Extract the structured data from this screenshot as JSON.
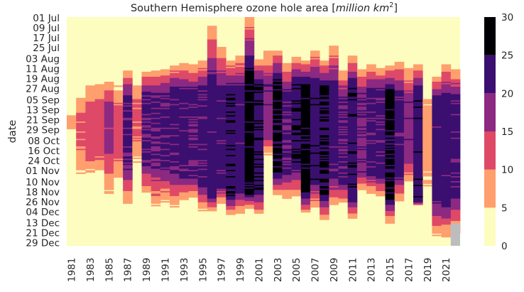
{
  "chart_data": {
    "type": "heatmap",
    "title": "Southern Hemisphere ozone hole area [million km²]",
    "title_parts": {
      "prefix": "Southern Hemisphere ozone hole area [",
      "italic": "million km",
      "superscript": "2",
      "suffix": "]"
    },
    "ylabel": "date",
    "xlabel": "",
    "x_tick_labels": [
      "1981",
      "1983",
      "1985",
      "1987",
      "1989",
      "1991",
      "1993",
      "1995",
      "1997",
      "1999",
      "2001",
      "2003",
      "2005",
      "2007",
      "2009",
      "2011",
      "2013",
      "2015",
      "2017",
      "2019",
      "2021"
    ],
    "y_tick_labels": [
      "01 Jul",
      "09 Jul",
      "17 Jul",
      "25 Jul",
      "03 Aug",
      "11 Aug",
      "19 Aug",
      "27 Aug",
      "05 Sep",
      "13 Sep",
      "21 Sep",
      "29 Sep",
      "08 Oct",
      "16 Oct",
      "24 Oct",
      "01 Nov",
      "10 Nov",
      "18 Nov",
      "26 Nov",
      "04 Dec",
      "13 Dec",
      "21 Dec",
      "29 Dec"
    ],
    "colorbar": {
      "ticks": [
        0,
        5,
        10,
        15,
        20,
        25,
        30
      ],
      "range": [
        0,
        30
      ],
      "bins": [
        {
          "from": 0,
          "to": 5,
          "color": "#fcfdbf"
        },
        {
          "from": 5,
          "to": 10,
          "color": "#fe9f6d"
        },
        {
          "from": 10,
          "to": 15,
          "color": "#de4968"
        },
        {
          "from": 15,
          "to": 20,
          "color": "#8c2981"
        },
        {
          "from": 20,
          "to": 25,
          "color": "#3b0f70"
        },
        {
          "from": 25,
          "to": 30,
          "color": "#000004"
        }
      ],
      "missing_color": "#bdbdbd"
    },
    "years": [
      1981,
      1982,
      1983,
      1984,
      1985,
      1986,
      1987,
      1988,
      1989,
      1990,
      1991,
      1992,
      1993,
      1994,
      1995,
      1996,
      1997,
      1998,
      1999,
      2000,
      2001,
      2002,
      2003,
      2004,
      2005,
      2006,
      2007,
      2008,
      2009,
      2010,
      2011,
      2012,
      2013,
      2014,
      2015,
      2016,
      2017,
      2018,
      2019,
      2020,
      2021,
      2022
    ],
    "season_start_date": "01 Jul",
    "season_end_date": "31 Dec",
    "yearly_profiles": [
      {
        "year": 1981,
        "start": "08 Sep",
        "peak_start": "22 Sep",
        "peak_end": "25 Sep",
        "end": "04 Oct",
        "peak": 7
      },
      {
        "year": 1982,
        "start": "29 Aug",
        "peak_start": "22 Sep",
        "peak_end": "07 Oct",
        "end": "08 Nov",
        "peak": 12
      },
      {
        "year": 1983,
        "start": "23 Aug",
        "peak_start": "16 Sep",
        "peak_end": "14 Oct",
        "end": "05 Nov",
        "peak": 14
      },
      {
        "year": 1984,
        "start": "22 Aug",
        "peak_start": "13 Sep",
        "peak_end": "13 Oct",
        "end": "06 Nov",
        "peak": 14
      },
      {
        "year": 1985,
        "start": "20 Aug",
        "peak_start": "11 Sep",
        "peak_end": "11 Oct",
        "end": "22 Nov",
        "peak": 18
      },
      {
        "year": 1986,
        "start": "24 Aug",
        "peak_start": "17 Sep",
        "peak_end": "10 Oct",
        "end": "13 Nov",
        "peak": 14
      },
      {
        "year": 1987,
        "start": "13 Aug",
        "peak_start": "02 Sep",
        "peak_end": "26 Oct",
        "end": "29 Nov",
        "peak": 22
      },
      {
        "year": 1988,
        "start": "18 Aug",
        "peak_start": "12 Sep",
        "peak_end": "30 Sep",
        "end": "30 Oct",
        "peak": 12
      },
      {
        "year": 1989,
        "start": "14 Aug",
        "peak_start": "01 Sep",
        "peak_end": "25 Oct",
        "end": "21 Nov",
        "peak": 22
      },
      {
        "year": 1990,
        "start": "13 Aug",
        "peak_start": "01 Sep",
        "peak_end": "24 Oct",
        "end": "01 Dec",
        "peak": 22
      },
      {
        "year": 1991,
        "start": "12 Aug",
        "peak_start": "01 Sep",
        "peak_end": "26 Oct",
        "end": "27 Nov",
        "peak": 22
      },
      {
        "year": 1992,
        "start": "09 Aug",
        "peak_start": "28 Aug",
        "peak_end": "31 Oct",
        "end": "01 Dec",
        "peak": 23
      },
      {
        "year": 1993,
        "start": "07 Aug",
        "peak_start": "30 Aug",
        "peak_end": "04 Nov",
        "end": "25 Nov",
        "peak": 23
      },
      {
        "year": 1994,
        "start": "08 Aug",
        "peak_start": "30 Aug",
        "peak_end": "05 Nov",
        "end": "23 Nov",
        "peak": 22
      },
      {
        "year": 1995,
        "start": "05 Aug",
        "peak_start": "28 Aug",
        "peak_end": "10 Nov",
        "end": "03 Dec",
        "peak": 23
      },
      {
        "year": 1996,
        "start": "08 Jul",
        "peak_start": "26 Aug",
        "peak_end": "20 Nov",
        "end": "04 Dec",
        "peak": 24
      },
      {
        "year": 1997,
        "start": "25 Jul",
        "peak_start": "30 Aug",
        "peak_end": "12 Nov",
        "end": "27 Nov",
        "peak": 23
      },
      {
        "year": 1998,
        "start": "05 Aug",
        "peak_start": "31 Aug",
        "peak_end": "20 Nov",
        "end": "07 Dec",
        "peak": 26
      },
      {
        "year": 1999,
        "start": "01 Aug",
        "peak_start": "30 Aug",
        "peak_end": "15 Nov",
        "end": "06 Dec",
        "peak": 24
      },
      {
        "year": 2000,
        "start": "01 Jul",
        "peak_start": "20 Aug",
        "peak_end": "18 Nov",
        "end": "01 Dec",
        "peak": 29
      },
      {
        "year": 2001,
        "start": "04 Aug",
        "peak_start": "25 Aug",
        "peak_end": "16 Nov",
        "end": "06 Dec",
        "peak": 26
      },
      {
        "year": 2002,
        "start": "28 Jul",
        "peak_start": "26 Aug",
        "peak_end": "01 Oct",
        "end": "20 Oct",
        "peak": 20
      },
      {
        "year": 2003,
        "start": "28 Jul",
        "peak_start": "24 Aug",
        "peak_end": "31 Oct",
        "end": "20 Nov",
        "peak": 28
      },
      {
        "year": 2004,
        "start": "07 Aug",
        "peak_start": "01 Sep",
        "peak_end": "01 Nov",
        "end": "24 Nov",
        "peak": 22
      },
      {
        "year": 2005,
        "start": "02 Aug",
        "peak_start": "25 Aug",
        "peak_end": "24 Oct",
        "end": "22 Nov",
        "peak": 26
      },
      {
        "year": 2006,
        "start": "05 Aug",
        "peak_start": "28 Aug",
        "peak_end": "16 Nov",
        "end": "05 Dec",
        "peak": 29
      },
      {
        "year": 2007,
        "start": "28 Jul",
        "peak_start": "26 Aug",
        "peak_end": "07 Nov",
        "end": "01 Dec",
        "peak": 25
      },
      {
        "year": 2008,
        "start": "05 Aug",
        "peak_start": "28 Aug",
        "peak_end": "18 Nov",
        "end": "11 Dec",
        "peak": 27
      },
      {
        "year": 2009,
        "start": "24 Jul",
        "peak_start": "29 Aug",
        "peak_end": "03 Nov",
        "end": "29 Nov",
        "peak": 24
      },
      {
        "year": 2010,
        "start": "12 Aug",
        "peak_start": "06 Sep",
        "peak_end": "10 Nov",
        "end": "28 Nov",
        "peak": 22
      },
      {
        "year": 2011,
        "start": "01 Aug",
        "peak_start": "28 Aug",
        "peak_end": "20 Nov",
        "end": "10 Dec",
        "peak": 26
      },
      {
        "year": 2012,
        "start": "11 Aug",
        "peak_start": "01 Sep",
        "peak_end": "01 Nov",
        "end": "18 Nov",
        "peak": 21
      },
      {
        "year": 2013,
        "start": "07 Aug",
        "peak_start": "30 Aug",
        "peak_end": "03 Nov",
        "end": "19 Nov",
        "peak": 23
      },
      {
        "year": 2014,
        "start": "10 Aug",
        "peak_start": "31 Aug",
        "peak_end": "05 Nov",
        "end": "22 Nov",
        "peak": 23
      },
      {
        "year": 2015,
        "start": "09 Aug",
        "peak_start": "01 Sep",
        "peak_end": "21 Nov",
        "end": "13 Dec",
        "peak": 28
      },
      {
        "year": 2016,
        "start": "05 Aug",
        "peak_start": "02 Sep",
        "peak_end": "03 Nov",
        "end": "27 Nov",
        "peak": 23
      },
      {
        "year": 2017,
        "start": "11 Aug",
        "peak_start": "09 Sep",
        "peak_end": "22 Oct",
        "end": "10 Nov",
        "peak": 20
      },
      {
        "year": 2018,
        "start": "08 Aug",
        "peak_start": "01 Sep",
        "peak_end": "26 Nov",
        "end": "29 Nov",
        "peak": 25
      },
      {
        "year": 2019,
        "start": "23 Aug",
        "peak_start": "22 Sep",
        "peak_end": "10 Oct",
        "end": "26 Nov",
        "peak": 9
      },
      {
        "year": 2020,
        "start": "18 Aug",
        "peak_start": "06 Sep",
        "peak_end": "20 Nov",
        "end": "24 Dec",
        "peak": 24
      },
      {
        "year": 2021,
        "start": "08 Aug",
        "peak_start": "05 Sep",
        "peak_end": "24 Nov",
        "end": "24 Dec",
        "peak": 24
      },
      {
        "year": 2022,
        "start": "12 Aug",
        "peak_start": "04 Sep",
        "peak_end": "18 Nov",
        "end": "22 Dec",
        "peak": 23
      }
    ],
    "missing_data": [
      {
        "year": 2022,
        "from": "14 Dec",
        "to": "31 Dec"
      }
    ],
    "grid": false,
    "legend": "colorbar-right"
  }
}
